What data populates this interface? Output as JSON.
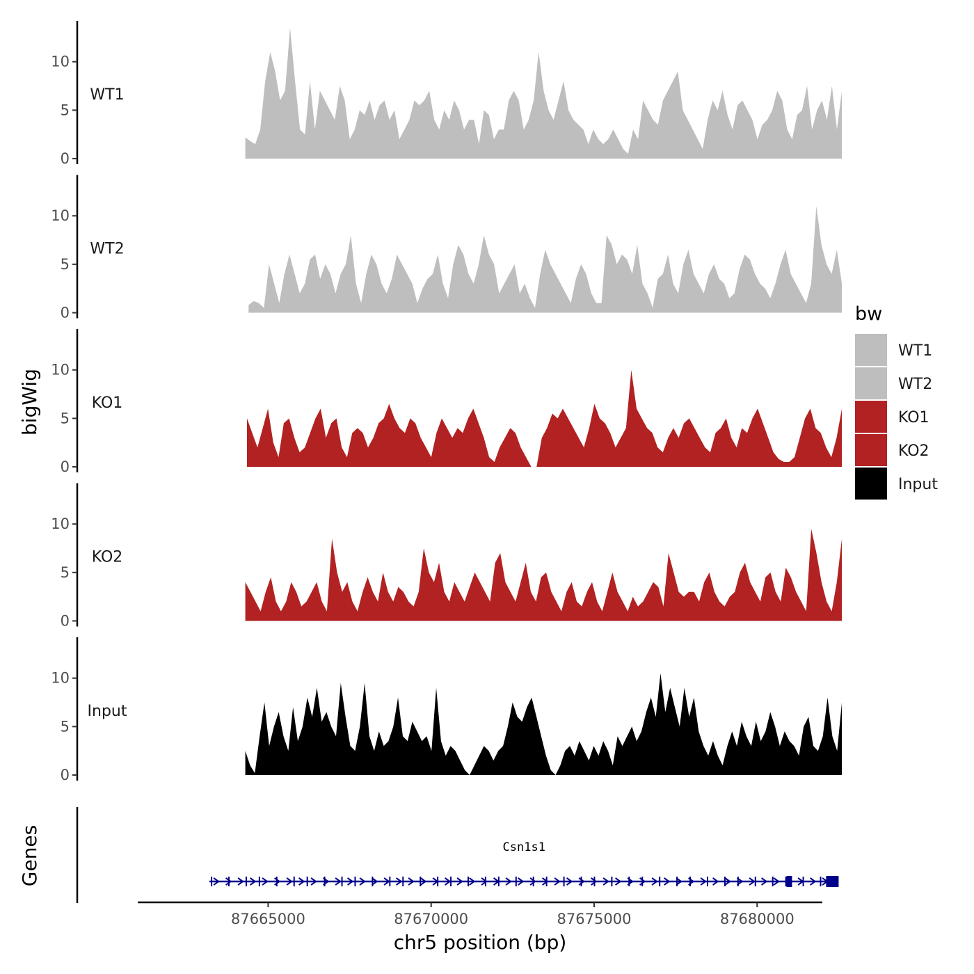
{
  "chart_data": {
    "type": "area",
    "ylabel": "bigWig",
    "xlabel": "chr5 position (bp)",
    "xlim": [
      87661000,
      87682000
    ],
    "ylim": [
      0,
      14
    ],
    "y_ticks": [
      0,
      5,
      10
    ],
    "x_ticks": [
      87665000,
      87670000,
      87675000,
      87680000
    ],
    "x_tick_labels": [
      "87665000",
      "87670000",
      "87675000",
      "87680000"
    ],
    "legend": {
      "title": "bw",
      "position": "right",
      "entries": [
        {
          "label": "WT1",
          "color": "#bebebe"
        },
        {
          "label": "WT2",
          "color": "#bebebe"
        },
        {
          "label": "KO1",
          "color": "#b22222"
        },
        {
          "label": "KO2",
          "color": "#b22222"
        },
        {
          "label": "Input",
          "color": "#000000"
        }
      ]
    },
    "series": [
      {
        "name": "WT1",
        "color": "#bebebe",
        "x_start": 87664300,
        "x_end": 87682600,
        "values": [
          2.2,
          1.8,
          1.5,
          3,
          8,
          11,
          9,
          6,
          7,
          13.5,
          8,
          3,
          2.5,
          8,
          3,
          7,
          6,
          5,
          4,
          7.5,
          6,
          2,
          3,
          5,
          4.5,
          6,
          4,
          5.5,
          6,
          4,
          5,
          2,
          3,
          4,
          6,
          5.5,
          6,
          7,
          4,
          3,
          5,
          4,
          6,
          5,
          3,
          4,
          4,
          1.5,
          5,
          4.5,
          2,
          3,
          3,
          6,
          7,
          6,
          3,
          4,
          6,
          11,
          7,
          5,
          4,
          6,
          8,
          5,
          4,
          3.5,
          3,
          1.5,
          3,
          2,
          1.5,
          2,
          3,
          2,
          1,
          0.5,
          3,
          2,
          6,
          5,
          4,
          3.5,
          6,
          7,
          8,
          9,
          5,
          4,
          3,
          2,
          1,
          4,
          6,
          5,
          7,
          4.5,
          3,
          5.5,
          6,
          5,
          4,
          2,
          3.5,
          4,
          5,
          7,
          6,
          3,
          2,
          4.5,
          5,
          7.5,
          3,
          5,
          6,
          4,
          7.5,
          3,
          7
        ]
      },
      {
        "name": "WT2",
        "color": "#bebebe",
        "x_start": 87664400,
        "x_end": 87682600,
        "values": [
          0.8,
          1.2,
          1,
          0.5,
          5,
          3,
          1,
          4,
          6,
          4,
          2,
          3,
          5.5,
          6,
          3.5,
          5,
          4,
          2,
          4,
          5,
          8,
          3,
          1,
          4,
          6,
          5,
          3,
          2,
          3.5,
          6,
          5,
          4,
          3,
          1,
          2.5,
          3.5,
          4,
          6,
          3,
          1.5,
          5,
          7,
          6,
          4,
          3,
          5,
          8,
          6,
          5,
          2,
          3,
          4,
          5,
          2,
          3,
          1.5,
          0.5,
          4,
          6.5,
          5,
          4,
          3,
          2,
          1,
          3.5,
          5,
          4,
          2,
          1,
          1,
          8,
          7,
          5,
          6,
          5.5,
          4,
          7,
          3,
          2,
          0.5,
          3.5,
          4,
          6,
          3,
          2,
          5,
          6.5,
          4,
          3,
          2,
          4,
          5,
          3.5,
          3,
          1.5,
          2,
          4.5,
          6,
          5.5,
          4,
          3,
          2.5,
          1.5,
          3,
          5,
          6.5,
          4,
          3,
          2,
          1,
          3,
          11,
          7,
          5,
          4,
          6.5,
          3
        ]
      },
      {
        "name": "KO1",
        "color": "#b22222",
        "x_start": 87664350,
        "x_end": 87682600,
        "values": [
          5,
          3.5,
          2,
          4,
          6,
          2.5,
          1,
          4.5,
          5,
          3,
          1.5,
          2,
          3.5,
          5,
          6,
          3,
          4.5,
          5,
          2,
          1,
          3.5,
          4,
          3.5,
          2,
          3,
          4.5,
          5,
          6.5,
          5,
          4,
          3.5,
          5,
          4.5,
          3,
          2,
          1,
          3.5,
          5,
          4,
          3,
          4,
          3.5,
          5,
          6,
          4.5,
          3,
          1,
          0.5,
          2,
          3,
          4,
          3.5,
          2,
          1,
          0,
          0,
          3,
          4,
          5.5,
          5,
          6,
          5,
          4,
          3,
          2,
          4,
          6.5,
          5,
          4.5,
          3.5,
          2,
          3,
          4,
          10,
          6,
          5,
          4,
          3.5,
          2,
          1.5,
          3,
          4,
          3,
          4.5,
          5,
          4,
          3,
          2,
          1.5,
          3.5,
          4,
          5,
          3,
          2,
          4,
          3.5,
          5,
          6,
          4.5,
          3,
          1.5,
          0.8,
          0.5,
          0.5,
          1,
          3,
          5,
          6,
          4,
          3.5,
          2,
          1,
          3,
          6
        ]
      },
      {
        "name": "KO2",
        "color": "#b22222",
        "x_start": 87664300,
        "x_end": 87682600,
        "values": [
          4,
          3,
          2,
          1,
          3,
          4.5,
          2,
          1,
          2,
          4,
          3,
          1.5,
          2,
          3,
          4,
          2,
          1,
          8.5,
          5,
          3,
          4,
          2,
          1,
          3,
          4.5,
          3,
          2,
          5,
          3,
          2,
          3.5,
          3,
          2,
          1.5,
          3,
          7.5,
          5,
          4,
          6,
          3,
          2,
          4,
          3,
          2,
          3.5,
          5,
          4,
          3,
          2,
          6,
          7,
          4,
          3,
          2,
          4,
          6,
          3,
          2,
          4.5,
          5,
          3,
          2,
          1,
          3,
          4,
          2,
          1.5,
          3,
          4,
          2,
          1,
          3,
          5,
          3,
          2,
          1,
          2.5,
          1.5,
          2,
          3,
          4,
          3.5,
          1.5,
          7,
          5,
          3,
          2.5,
          3,
          3,
          2,
          4,
          5,
          3,
          2,
          1.5,
          2.5,
          3,
          5,
          6,
          4,
          3,
          2,
          4.5,
          5,
          3,
          2,
          5.5,
          4.5,
          3,
          2,
          1,
          9.5,
          7,
          4,
          2,
          1,
          4,
          8.5
        ]
      },
      {
        "name": "Input",
        "color": "#000000",
        "x_start": 87664300,
        "x_end": 87682600,
        "values": [
          2.5,
          1,
          0.2,
          4,
          7.5,
          3,
          5,
          6.5,
          4,
          2.5,
          7,
          3.5,
          5,
          8,
          6,
          9,
          5.5,
          6.5,
          5,
          4,
          9.5,
          6,
          3,
          2.5,
          5,
          9.5,
          4,
          2.5,
          4.5,
          3,
          3.5,
          5,
          8,
          4,
          3.5,
          5.5,
          4.5,
          3.5,
          4,
          2.5,
          9,
          3.5,
          2,
          3,
          2.5,
          1.5,
          0.5,
          0,
          1,
          2,
          3,
          2.5,
          1.5,
          2.5,
          3,
          5,
          7.5,
          6,
          5.5,
          7,
          8,
          6,
          4,
          2,
          0.5,
          0,
          1,
          2.5,
          3,
          2,
          3.5,
          2.5,
          1.5,
          3,
          2,
          3.5,
          2.5,
          1,
          4,
          3,
          4,
          5,
          3.5,
          4.5,
          6.5,
          8,
          6,
          10.5,
          6.5,
          9,
          7,
          5,
          9,
          6,
          8,
          4.5,
          3,
          2,
          3.5,
          2,
          1,
          3,
          4.5,
          3,
          5.5,
          4,
          3,
          5.5,
          3.5,
          4.5,
          6.5,
          5,
          3,
          4.5,
          3.5,
          3,
          2,
          5,
          6,
          3,
          2.5,
          4,
          8,
          4,
          2.5,
          7.5
        ]
      }
    ],
    "genes": {
      "track_label": "Genes",
      "items": [
        {
          "name": "Csn1s1",
          "strand": "+",
          "start": 87663200,
          "end": 87682500
        }
      ]
    }
  }
}
